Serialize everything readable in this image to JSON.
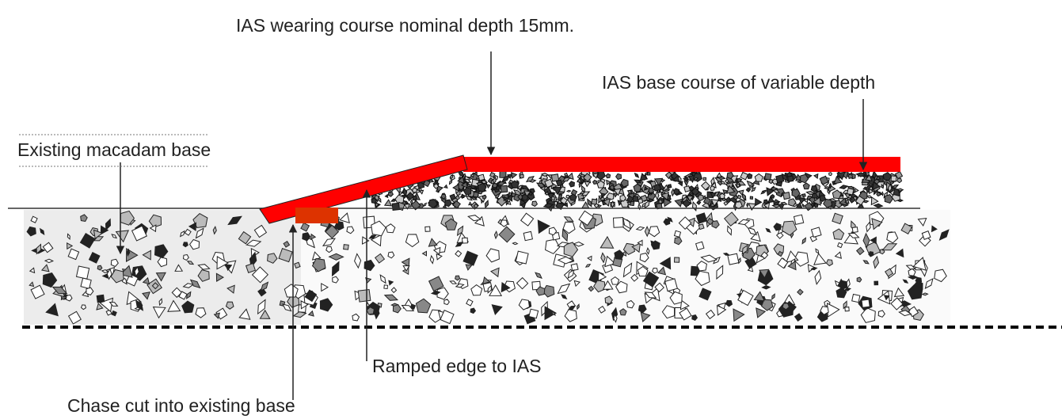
{
  "labels": {
    "wearing_course": "IAS  wearing  course nominal depth 15mm.",
    "base_course": "IAS base  course of variable depth",
    "existing_base": "Existing macadam base",
    "ramped_edge": "Ramped edge to IAS",
    "chase_cut": "Chase cut into existing base"
  }
}
